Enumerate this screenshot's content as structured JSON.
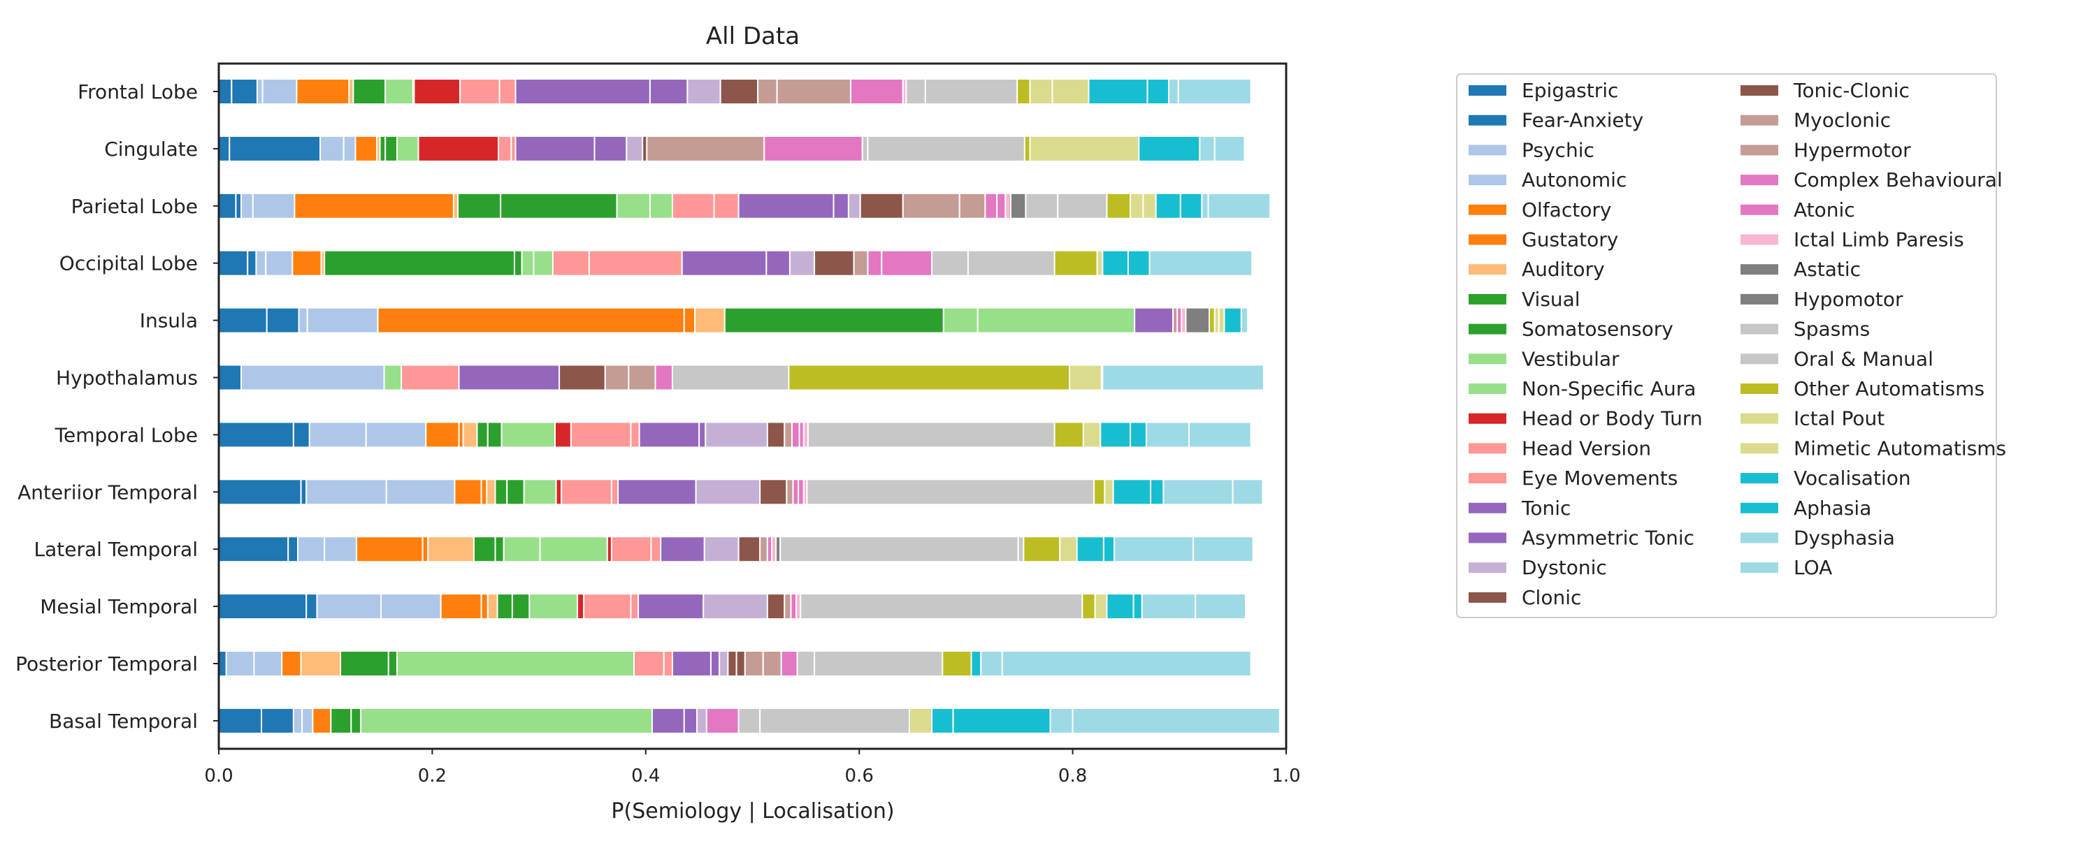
{
  "chart_data": {
    "type": "bar",
    "orientation": "horizontal",
    "stacked": true,
    "title": "All Data",
    "xlabel": "P(Semiology | Localisation)",
    "ylabel": "",
    "xlim": [
      0,
      1
    ],
    "xticks": [
      "0.0",
      "0.2",
      "0.4",
      "0.6",
      "0.8",
      "1.0"
    ],
    "grid": false,
    "legend_position": "right",
    "categories": [
      "Frontal Lobe",
      "Cingulate",
      "Parietal Lobe",
      "Occipital Lobe",
      "Insula",
      "Hypothalamus",
      "Temporal Lobe",
      "Anteriior Temporal",
      "Lateral Temporal",
      "Mesial Temporal",
      "Posterior Temporal",
      "Basal Temporal"
    ],
    "series": [
      {
        "name": "Epigastric",
        "color": "#1f77b4",
        "values": [
          0.012,
          0.01,
          0.016,
          0.027,
          0.045,
          0.021,
          0.07,
          0.077,
          0.065,
          0.082,
          0.007,
          0.04
        ]
      },
      {
        "name": "Fear-Anxiety",
        "color": "#1f77b4",
        "values": [
          0.024,
          0.085,
          0.005,
          0.008,
          0.03,
          0,
          0.015,
          0.005,
          0.009,
          0.01,
          0,
          0.03
        ]
      },
      {
        "name": "Psychic",
        "color": "#aec7e8",
        "values": [
          0.005,
          0.022,
          0.011,
          0.009,
          0.008,
          0.134,
          0.053,
          0.075,
          0.025,
          0.06,
          0.026,
          0.008
        ]
      },
      {
        "name": "Autonomic",
        "color": "#aec7e8",
        "values": [
          0.032,
          0.011,
          0.039,
          0.025,
          0.066,
          0,
          0.056,
          0.064,
          0.03,
          0.056,
          0.026,
          0.01
        ]
      },
      {
        "name": "Olfactory",
        "color": "#ff7f0e",
        "values": [
          0.049,
          0.02,
          0.149,
          0.027,
          0.287,
          0,
          0.031,
          0.025,
          0.062,
          0.038,
          0.018,
          0.017
        ]
      },
      {
        "name": "Gustatory",
        "color": "#ff7f0e",
        "values": [
          0,
          0,
          0,
          0,
          0.01,
          0,
          0.004,
          0.005,
          0.005,
          0.006,
          0,
          0
        ]
      },
      {
        "name": "Auditory",
        "color": "#ffbb78",
        "values": [
          0.004,
          0.003,
          0.004,
          0.003,
          0.028,
          0,
          0.013,
          0.008,
          0.043,
          0.009,
          0.037,
          0
        ]
      },
      {
        "name": "Visual",
        "color": "#2ca02c",
        "values": [
          0.03,
          0.005,
          0.04,
          0.178,
          0.205,
          0,
          0.01,
          0.011,
          0.02,
          0.014,
          0.045,
          0.019
        ]
      },
      {
        "name": "Somatosensory",
        "color": "#2ca02c",
        "values": [
          0,
          0.011,
          0.109,
          0.007,
          0,
          0,
          0.013,
          0.016,
          0.008,
          0.016,
          0.008,
          0.009
        ]
      },
      {
        "name": "Vestibular",
        "color": "#98df8a",
        "values": [
          0.026,
          0.02,
          0.031,
          0.011,
          0.032,
          0.016,
          0.05,
          0.03,
          0.034,
          0.045,
          0.222,
          0.273
        ]
      },
      {
        "name": "Non-Specific Aura",
        "color": "#98df8a",
        "values": [
          0.001,
          0,
          0.021,
          0.018,
          0.147,
          0,
          0,
          0,
          0.063,
          0,
          0,
          0
        ]
      },
      {
        "name": "Head or Body Turn",
        "color": "#d62728",
        "values": [
          0.043,
          0.075,
          0,
          0,
          0,
          0,
          0.015,
          0.005,
          0.004,
          0.006,
          0,
          0
        ]
      },
      {
        "name": "Head Version",
        "color": "#ff9896",
        "values": [
          0.037,
          0.012,
          0.039,
          0.034,
          0,
          0.054,
          0.056,
          0.047,
          0.037,
          0.044,
          0.028,
          0
        ]
      },
      {
        "name": "Eye Movements",
        "color": "#ff9896",
        "values": [
          0.015,
          0.004,
          0.023,
          0.087,
          0,
          0,
          0.008,
          0.006,
          0.009,
          0.007,
          0.008,
          0
        ]
      },
      {
        "name": "Tonic",
        "color": "#9467bd",
        "values": [
          0.126,
          0.074,
          0.089,
          0.079,
          0,
          0.094,
          0.056,
          0.073,
          0.041,
          0.061,
          0.036,
          0.03
        ]
      },
      {
        "name": "Asymmetric Tonic",
        "color": "#9467bd",
        "values": [
          0.035,
          0.03,
          0.014,
          0.022,
          0.036,
          0,
          0.006,
          0,
          0,
          0,
          0.008,
          0.012
        ]
      },
      {
        "name": "Dystonic",
        "color": "#c5b0d5",
        "values": [
          0.031,
          0.015,
          0.011,
          0.023,
          0,
          0,
          0.058,
          0.06,
          0.032,
          0.06,
          0.008,
          0.009
        ]
      },
      {
        "name": "Clonic",
        "color": "#8c564b",
        "values": [
          0.035,
          0.004,
          0.04,
          0.037,
          0,
          0.043,
          0.016,
          0.025,
          0.02,
          0.016,
          0.008,
          0
        ]
      },
      {
        "name": "Tonic-Clonic",
        "color": "#8c564b",
        "values": [
          0,
          0,
          0,
          0,
          0,
          0,
          0,
          0,
          0,
          0,
          0.008,
          0
        ]
      },
      {
        "name": "Myoclonic",
        "color": "#c49c94",
        "values": [
          0.018,
          0.11,
          0.053,
          0.013,
          0.004,
          0.022,
          0.007,
          0.006,
          0.007,
          0.006,
          0.017,
          0
        ]
      },
      {
        "name": "Hypermotor",
        "color": "#c49c94",
        "values": [
          0.069,
          0,
          0.024,
          0,
          0,
          0.025,
          0,
          0,
          0,
          0,
          0.017,
          0
        ]
      },
      {
        "name": "Complex Behavioural",
        "color": "#e377c2",
        "values": [
          0.049,
          0.092,
          0.011,
          0.013,
          0.004,
          0.016,
          0.007,
          0.005,
          0.004,
          0.005,
          0.015,
          0.03
        ]
      },
      {
        "name": "Atonic",
        "color": "#e377c2",
        "values": [
          0,
          0,
          0.008,
          0.047,
          0,
          0,
          0.004,
          0.005,
          0,
          0,
          0,
          0
        ]
      },
      {
        "name": "Ictal Limb Paresis",
        "color": "#f7b6d2",
        "values": [
          0.003,
          0,
          0.005,
          0,
          0.004,
          0,
          0.004,
          0.003,
          0.004,
          0.004,
          0,
          0
        ]
      },
      {
        "name": "Astatic",
        "color": "#7f7f7f",
        "values": [
          0,
          0,
          0.014,
          0,
          0.022,
          0,
          0,
          0,
          0,
          0,
          0,
          0
        ]
      },
      {
        "name": "Hypomotor",
        "color": "#7f7f7f",
        "values": [
          0,
          0,
          0,
          0,
          0,
          0,
          0,
          0,
          0.004,
          0,
          0,
          0
        ]
      },
      {
        "name": "Spasms",
        "color": "#c7c7c7",
        "values": [
          0.018,
          0.005,
          0.03,
          0.034,
          0,
          0.109,
          0.231,
          0.269,
          0.223,
          0.264,
          0.016,
          0.02
        ]
      },
      {
        "name": "Oral & Manual",
        "color": "#c7c7c7",
        "values": [
          0.086,
          0.147,
          0.046,
          0.081,
          0,
          0,
          0,
          0,
          0.005,
          0,
          0.12,
          0.14
        ]
      },
      {
        "name": "Other Automatisms",
        "color": "#bcbd22",
        "values": [
          0.012,
          0.005,
          0.022,
          0.04,
          0.005,
          0.263,
          0.027,
          0.01,
          0.034,
          0.012,
          0.027,
          0
        ]
      },
      {
        "name": "Ictal Pout",
        "color": "#dbdb8d",
        "values": [
          0.021,
          0.102,
          0.012,
          0,
          0.004,
          0,
          0.016,
          0.008,
          0.016,
          0.011,
          0,
          0.021
        ]
      },
      {
        "name": "Mimetic Automatisms",
        "color": "#dbdb8d",
        "values": [
          0.034,
          0,
          0.012,
          0.005,
          0.005,
          0.03,
          0,
          0,
          0,
          0,
          0,
          0
        ]
      },
      {
        "name": "Vocalisation",
        "color": "#17becf",
        "values": [
          0.055,
          0.057,
          0.023,
          0.024,
          0.016,
          0.001,
          0.028,
          0.035,
          0.025,
          0.025,
          0.009,
          0.02
        ]
      },
      {
        "name": "Aphasia",
        "color": "#17becf",
        "values": [
          0.02,
          0,
          0.02,
          0.02,
          0,
          0,
          0.015,
          0.012,
          0.01,
          0.008,
          0,
          0.091
        ]
      },
      {
        "name": "Dysphasia",
        "color": "#9edae5",
        "values": [
          0.009,
          0.014,
          0.006,
          0,
          0,
          0,
          0.04,
          0.065,
          0.074,
          0.05,
          0.02,
          0.021
        ]
      },
      {
        "name": "LOA",
        "color": "#9edae5",
        "values": [
          0.068,
          0.028,
          0.058,
          0.096,
          0.006,
          0.151,
          0.058,
          0.028,
          0.056,
          0.047,
          0.233,
          0.194
        ]
      }
    ]
  }
}
